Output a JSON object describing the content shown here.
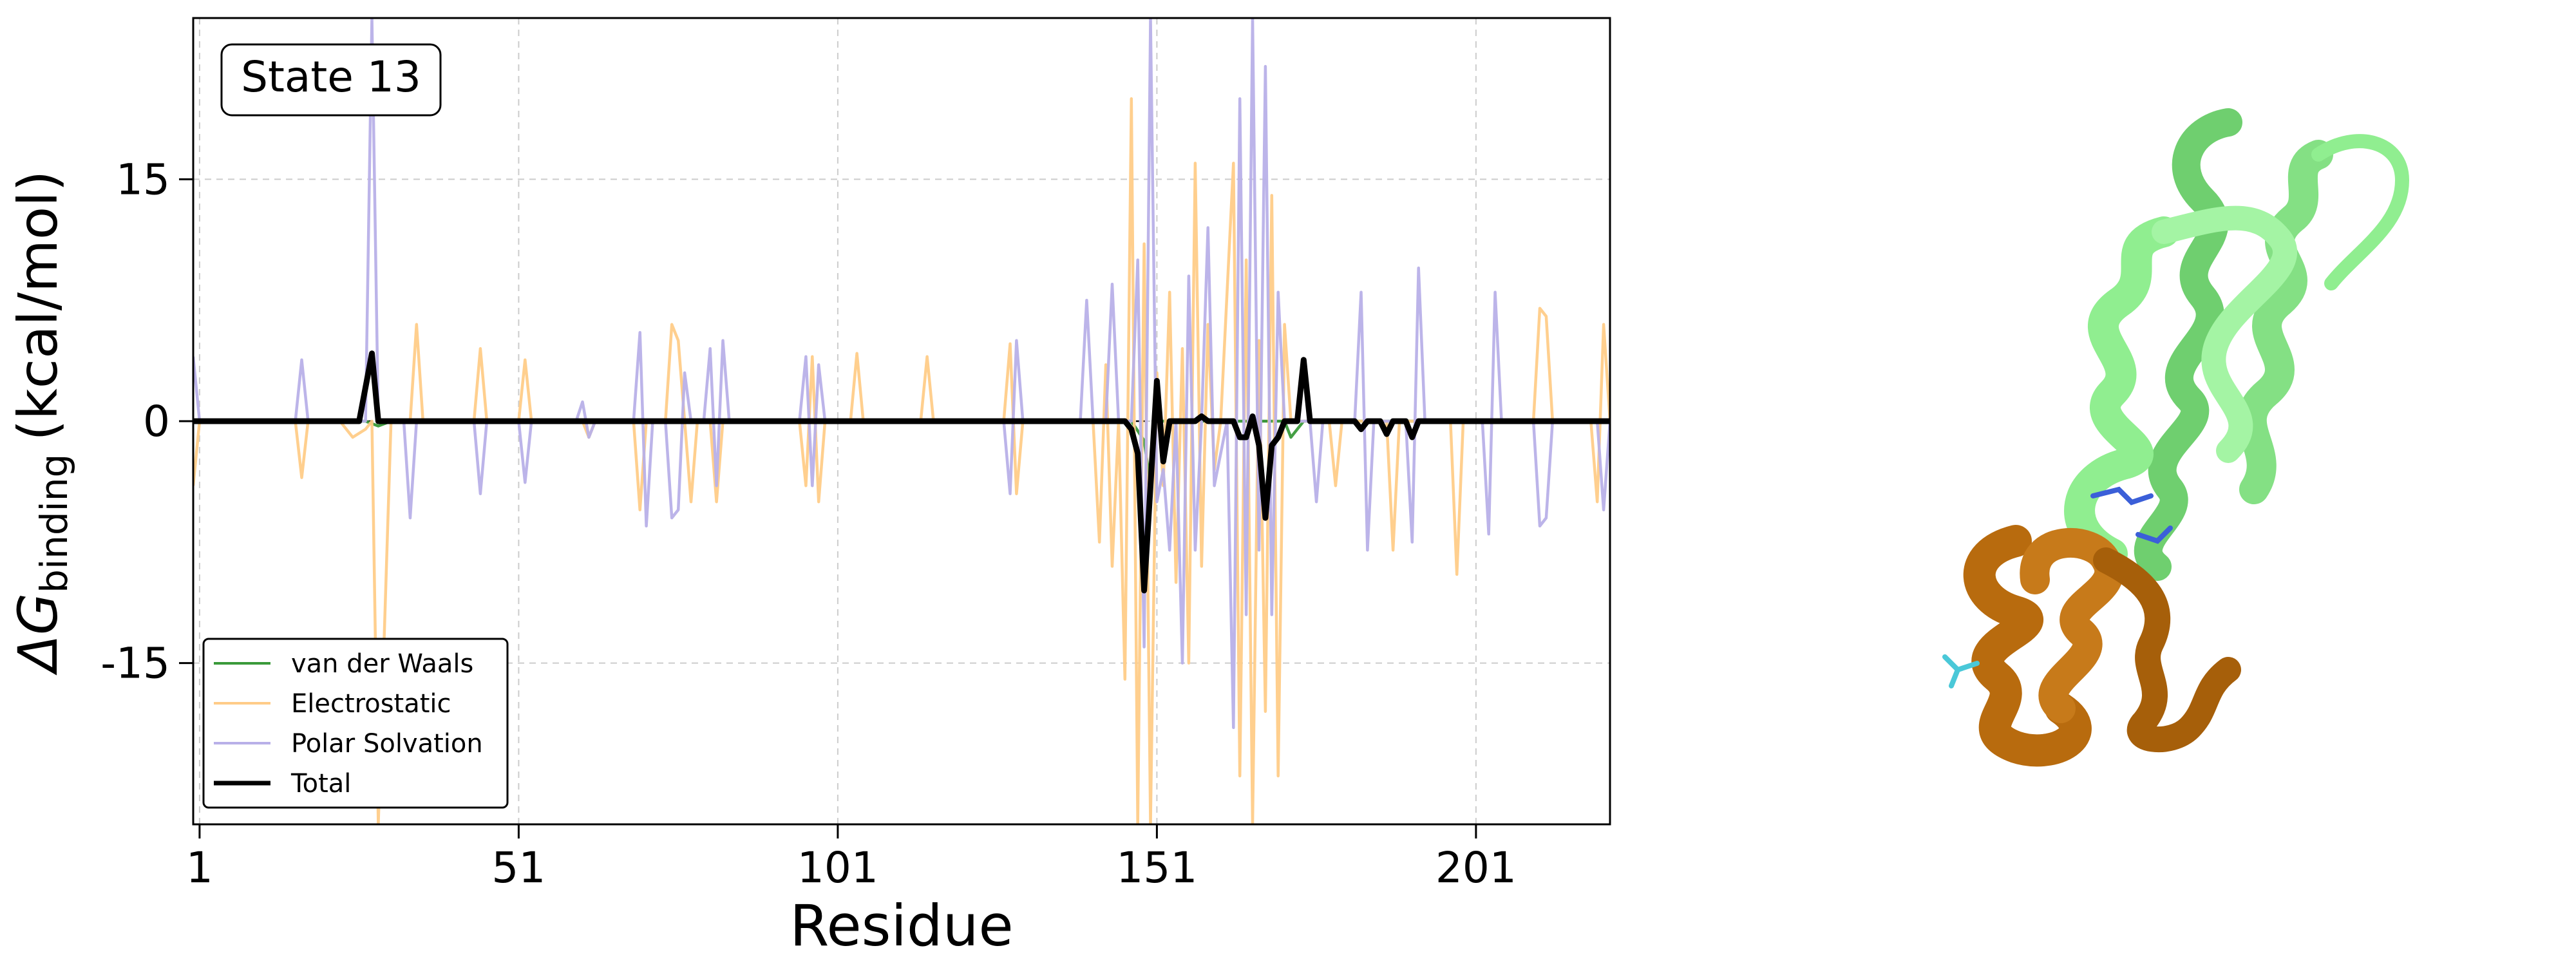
{
  "chart_data": {
    "type": "line",
    "annotation": "State 13",
    "ylabel_symbol": "ΔG",
    "ylabel_subscript": "binding",
    "ylabel_units": "(kcal/mol)",
    "xlabel": "Residue",
    "xlim": [
      0,
      222
    ],
    "ylim": [
      -25,
      25
    ],
    "xticks": [
      1,
      51,
      101,
      151,
      201
    ],
    "yticks": [
      -15,
      0,
      15
    ],
    "grid": true,
    "legend_position": "lower-left",
    "series": [
      {
        "name": "van der Waals",
        "color": "#3a9a3a",
        "points": [
          [
            0,
            0
          ],
          [
            27,
            0
          ],
          [
            29,
            -0.3
          ],
          [
            31,
            0
          ],
          [
            147,
            0
          ],
          [
            149,
            -1.2
          ],
          [
            150,
            -4
          ],
          [
            151,
            0
          ],
          [
            171,
            0
          ],
          [
            172,
            -1
          ],
          [
            174,
            0
          ],
          [
            222,
            0
          ]
        ]
      },
      {
        "name": "Electrostatic",
        "color": "#ffcc88",
        "points": [
          [
            0,
            -4
          ],
          [
            1,
            0
          ],
          [
            16,
            0
          ],
          [
            17,
            -3.5
          ],
          [
            18,
            0
          ],
          [
            23,
            0
          ],
          [
            25,
            -1
          ],
          [
            27,
            -0.5
          ],
          [
            28,
            0
          ],
          [
            29,
            -25
          ],
          [
            31,
            0
          ],
          [
            34,
            0
          ],
          [
            35,
            6
          ],
          [
            36,
            0
          ],
          [
            44,
            0
          ],
          [
            45,
            4.5
          ],
          [
            46,
            0
          ],
          [
            51,
            0
          ],
          [
            52,
            3.8
          ],
          [
            53,
            0
          ],
          [
            61,
            0
          ],
          [
            62,
            -1
          ],
          [
            63,
            0
          ],
          [
            69,
            0
          ],
          [
            70,
            -5.5
          ],
          [
            71,
            0
          ],
          [
            74,
            0
          ],
          [
            75,
            6
          ],
          [
            76,
            5
          ],
          [
            77,
            0
          ],
          [
            78,
            -5
          ],
          [
            79,
            0
          ],
          [
            81,
            0
          ],
          [
            82,
            -5
          ],
          [
            83,
            0
          ],
          [
            95,
            0
          ],
          [
            96,
            -4
          ],
          [
            97,
            4
          ],
          [
            98,
            -5
          ],
          [
            99,
            0
          ],
          [
            103,
            0
          ],
          [
            104,
            4.2
          ],
          [
            105,
            0
          ],
          [
            114,
            0
          ],
          [
            115,
            4
          ],
          [
            116,
            0
          ],
          [
            127,
            0
          ],
          [
            128,
            4.8
          ],
          [
            129,
            -4.5
          ],
          [
            130,
            0
          ],
          [
            141,
            0
          ],
          [
            142,
            -7.5
          ],
          [
            143,
            3.5
          ],
          [
            144,
            -9
          ],
          [
            145,
            0
          ],
          [
            146,
            -16
          ],
          [
            147,
            20
          ],
          [
            148,
            -25
          ],
          [
            149,
            11
          ],
          [
            150,
            -25
          ],
          [
            151,
            3
          ],
          [
            152,
            -4
          ],
          [
            153,
            8
          ],
          [
            154,
            -10
          ],
          [
            155,
            4.5
          ],
          [
            156,
            -15
          ],
          [
            157,
            16
          ],
          [
            158,
            -9
          ],
          [
            159,
            6
          ],
          [
            160,
            -3
          ],
          [
            161,
            0
          ],
          [
            163,
            16
          ],
          [
            164,
            -22
          ],
          [
            165,
            10
          ],
          [
            166,
            -25
          ],
          [
            167,
            5
          ],
          [
            168,
            -18
          ],
          [
            169,
            14
          ],
          [
            170,
            -22
          ],
          [
            171,
            6
          ],
          [
            172,
            0
          ],
          [
            178,
            0
          ],
          [
            179,
            -4
          ],
          [
            180,
            0
          ],
          [
            187,
            0
          ],
          [
            188,
            -8
          ],
          [
            189,
            0
          ],
          [
            197,
            0
          ],
          [
            198,
            -9.5
          ],
          [
            199,
            0
          ],
          [
            210,
            0
          ],
          [
            211,
            7
          ],
          [
            212,
            6.5
          ],
          [
            213,
            0
          ],
          [
            219,
            0
          ],
          [
            220,
            -5
          ],
          [
            221,
            6
          ],
          [
            222,
            0
          ]
        ]
      },
      {
        "name": "Polar Solvation",
        "color": "#b8b0e8",
        "points": [
          [
            0,
            4
          ],
          [
            1,
            0
          ],
          [
            16,
            0
          ],
          [
            17,
            3.8
          ],
          [
            18,
            0
          ],
          [
            27,
            0
          ],
          [
            28,
            25
          ],
          [
            29,
            0
          ],
          [
            33,
            0
          ],
          [
            34,
            -6
          ],
          [
            35,
            0
          ],
          [
            44,
            0
          ],
          [
            45,
            -4.5
          ],
          [
            46,
            0
          ],
          [
            51,
            0
          ],
          [
            52,
            -3.8
          ],
          [
            53,
            0
          ],
          [
            60,
            0
          ],
          [
            61,
            1.2
          ],
          [
            62,
            -1
          ],
          [
            63,
            0
          ],
          [
            69,
            0
          ],
          [
            70,
            5.5
          ],
          [
            71,
            -6.5
          ],
          [
            72,
            0
          ],
          [
            74,
            0
          ],
          [
            75,
            -6
          ],
          [
            76,
            -5.5
          ],
          [
            77,
            3
          ],
          [
            78,
            0
          ],
          [
            80,
            0
          ],
          [
            81,
            4.5
          ],
          [
            82,
            -4
          ],
          [
            83,
            5
          ],
          [
            84,
            0
          ],
          [
            95,
            0
          ],
          [
            96,
            4
          ],
          [
            97,
            -4
          ],
          [
            98,
            3.5
          ],
          [
            99,
            0
          ],
          [
            127,
            0
          ],
          [
            128,
            -4.5
          ],
          [
            129,
            5
          ],
          [
            130,
            0
          ],
          [
            139,
            0
          ],
          [
            140,
            7.5
          ],
          [
            141,
            0
          ],
          [
            143,
            0
          ],
          [
            144,
            8.5
          ],
          [
            145,
            0
          ],
          [
            147,
            0
          ],
          [
            148,
            10
          ],
          [
            149,
            -14
          ],
          [
            150,
            25
          ],
          [
            151,
            -5
          ],
          [
            152,
            -3
          ],
          [
            153,
            -8
          ],
          [
            154,
            0
          ],
          [
            155,
            -15
          ],
          [
            156,
            9
          ],
          [
            157,
            -8
          ],
          [
            158,
            0
          ],
          [
            159,
            12
          ],
          [
            160,
            -4
          ],
          [
            162,
            0
          ],
          [
            163,
            -19
          ],
          [
            164,
            20
          ],
          [
            165,
            -12
          ],
          [
            166,
            25
          ],
          [
            167,
            -8
          ],
          [
            168,
            22
          ],
          [
            169,
            -12
          ],
          [
            170,
            8
          ],
          [
            171,
            0
          ],
          [
            175,
            0
          ],
          [
            176,
            -5
          ],
          [
            177,
            0
          ],
          [
            182,
            0
          ],
          [
            183,
            8
          ],
          [
            184,
            -8
          ],
          [
            185,
            0
          ],
          [
            190,
            0
          ],
          [
            191,
            -7.5
          ],
          [
            192,
            9.5
          ],
          [
            193,
            0
          ],
          [
            202,
            0
          ],
          [
            203,
            -7
          ],
          [
            204,
            8
          ],
          [
            205,
            0
          ],
          [
            210,
            0
          ],
          [
            211,
            -6.5
          ],
          [
            212,
            -6
          ],
          [
            213,
            0
          ],
          [
            220,
            0
          ],
          [
            221,
            -5.5
          ],
          [
            222,
            0
          ]
        ]
      },
      {
        "name": "Total",
        "color": "#000000",
        "points": [
          [
            0,
            0
          ],
          [
            26,
            0
          ],
          [
            28,
            4.2
          ],
          [
            29,
            0
          ],
          [
            146,
            0
          ],
          [
            147,
            -0.5
          ],
          [
            148,
            -2
          ],
          [
            149,
            -10.5
          ],
          [
            150,
            -4
          ],
          [
            151,
            2.5
          ],
          [
            152,
            -2.5
          ],
          [
            153,
            0
          ],
          [
            157,
            0
          ],
          [
            158,
            0.3
          ],
          [
            159,
            0
          ],
          [
            163,
            0
          ],
          [
            164,
            -1
          ],
          [
            165,
            -1
          ],
          [
            166,
            0.3
          ],
          [
            167,
            -1.5
          ],
          [
            168,
            -6
          ],
          [
            169,
            -1.5
          ],
          [
            170,
            -1
          ],
          [
            171,
            0
          ],
          [
            173,
            0
          ],
          [
            174,
            3.8
          ],
          [
            175,
            0
          ],
          [
            182,
            0
          ],
          [
            183,
            -0.5
          ],
          [
            184,
            0
          ],
          [
            186,
            0
          ],
          [
            187,
            -0.8
          ],
          [
            188,
            0
          ],
          [
            190,
            0
          ],
          [
            191,
            -1
          ],
          [
            192,
            0
          ],
          [
            222,
            0
          ]
        ]
      }
    ]
  },
  "structure": {
    "green_color": "#90ee90",
    "brown_color": "#b86b0e",
    "stick_colors": [
      "#3b5fd8",
      "#4ac8d8"
    ]
  }
}
